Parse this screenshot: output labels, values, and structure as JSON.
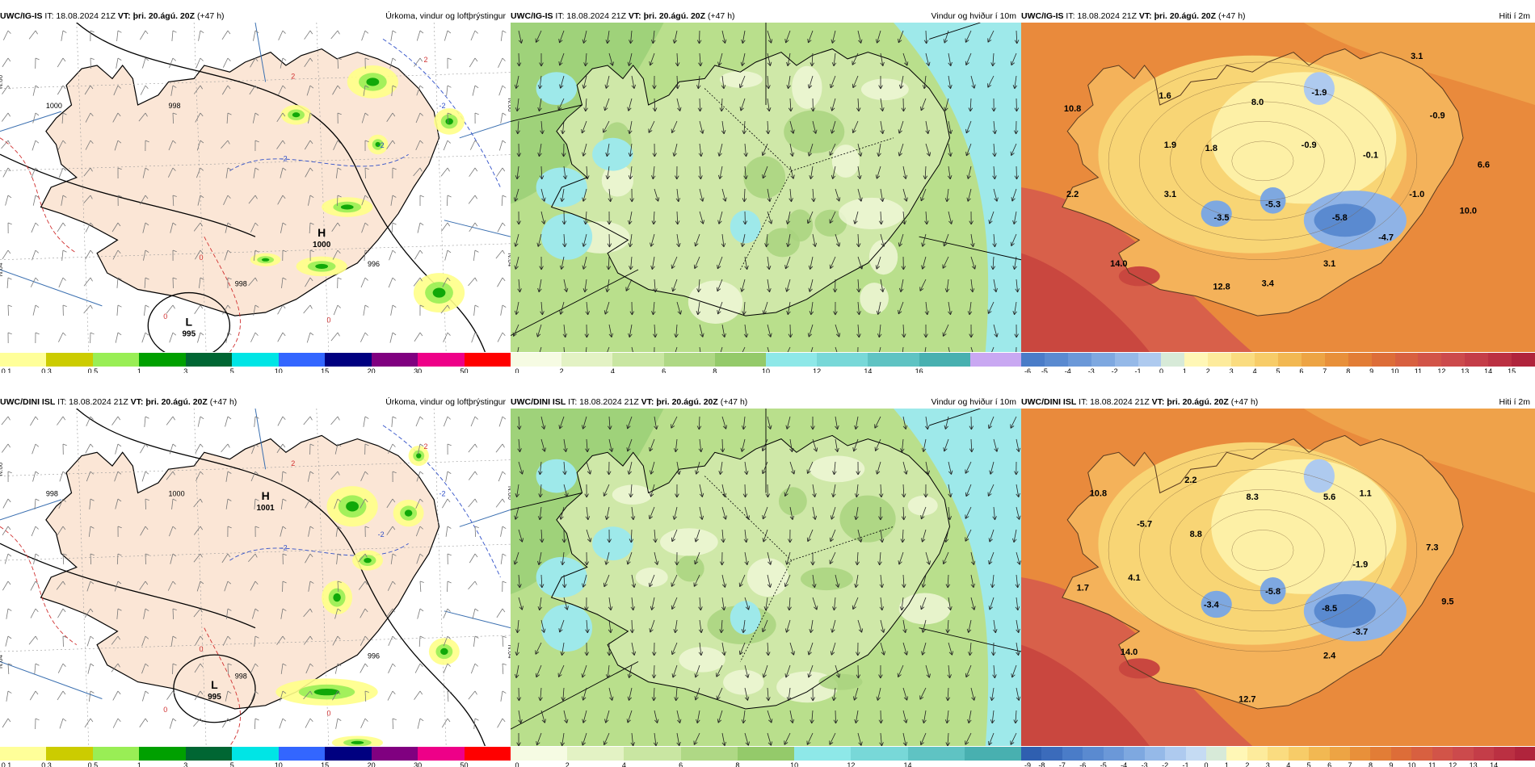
{
  "rows": [
    {
      "model": "UWC/IG-IS",
      "panels": [
        {
          "kind": "precip",
          "it_text": "IT: 18.08.2024 21Z",
          "vt_label": "VT:",
          "vt_value": "þri. 20.ágú. 20Z",
          "lead": "(+47 h)",
          "title": "Úrkoma, vindur og loftþrýstingur",
          "pressure_centers": [
            {
              "type": "H",
              "value": "1000"
            },
            {
              "type": "L",
              "value": "995"
            }
          ],
          "isobar_labels": [
            "998",
            "1000",
            "996",
            "998"
          ],
          "temp_labels": [
            "-2",
            "-2",
            "-2",
            "0",
            "0",
            "0",
            "2",
            "2"
          ],
          "edge_labels": [
            "N.66",
            "N.64",
            "N.66",
            "N.64"
          ],
          "colorbar": {
            "ticks": [
              "0.1",
              "0.3",
              "0.5",
              "1",
              "3",
              "5",
              "10",
              "15",
              "20",
              "30",
              "50"
            ],
            "colors": [
              "#ffff99",
              "#cccc00",
              "#99ee55",
              "#00a000",
              "#006633",
              "#00e5e5",
              "#3366ff",
              "#000080",
              "#800080",
              "#ee0088",
              "#ff0000"
            ]
          }
        },
        {
          "kind": "wind",
          "it_text": "IT: 18.08.2024 21Z",
          "vt_label": "VT:",
          "vt_value": "þri. 20.ágú. 20Z",
          "lead": "(+47 h)",
          "title": "Vindur og hviður í 10m",
          "colorbar": {
            "ticks": [
              "0",
              "2",
              "4",
              "6",
              "8",
              "10",
              "12",
              "14",
              "16"
            ],
            "colors": [
              "#f6fbe3",
              "#e3f2c4",
              "#c9e6a2",
              "#afd885",
              "#94ca6a",
              "#8ee8e8",
              "#78d8d8",
              "#5fc3c3",
              "#48b0b0",
              "#c9a8f2"
            ]
          }
        },
        {
          "kind": "temp",
          "it_text": "IT: 18.08.2024 21Z",
          "vt_label": "VT:",
          "vt_value": "þri. 20.ágú. 20Z",
          "lead": "(+47 h)",
          "title": "Hiti í 2m",
          "labels": [
            "10.8",
            "1.6",
            "8.0",
            "-1.9",
            "3.1",
            "-0.9",
            "1.9",
            "1.8",
            "-0.9",
            "-0.1",
            "6.6",
            "2.2",
            "3.1",
            "-5.3",
            "-3.5",
            "-5.8",
            "-1.0",
            "10.0",
            "-4.7",
            "14.0",
            "3.1",
            "12.8",
            "3.4"
          ],
          "colorbar": {
            "ticks": [
              "-6",
              "-5",
              "-4",
              "-3",
              "-2",
              "-1",
              "0",
              "1",
              "2",
              "3",
              "4",
              "5",
              "6",
              "7",
              "8",
              "9",
              "10",
              "11",
              "12",
              "13",
              "14",
              "15"
            ],
            "colors": [
              "#4a7cc8",
              "#5a8ad0",
              "#6b98d8",
              "#7ea8e0",
              "#95b9e8",
              "#aecaef",
              "#d7ead8",
              "#fff7b6",
              "#fdeb9c",
              "#fadc80",
              "#f7cc68",
              "#f2b852",
              "#eda444",
              "#e8903a",
              "#e27d36",
              "#dd6d38",
              "#d86040",
              "#d25448",
              "#cc4a4c",
              "#c43d48",
              "#bb3042",
              "#b0243c"
            ]
          }
        }
      ]
    },
    {
      "model": "UWC/DINI ISL",
      "panels": [
        {
          "kind": "precip",
          "it_text": "IT: 18.08.2024 21Z",
          "vt_label": "VT:",
          "vt_value": "þri. 20.ágú. 20Z",
          "lead": "(+47 h)",
          "title": "Úrkoma, vindur og loftþrýstingur",
          "pressure_centers": [
            {
              "type": "H",
              "value": "1001"
            },
            {
              "type": "L",
              "value": "995"
            }
          ],
          "isobar_labels": [
            "1000",
            "998",
            "996",
            "998"
          ],
          "temp_labels": [
            "-2",
            "-2",
            "-2",
            "0",
            "0",
            "0",
            "2",
            "2"
          ],
          "edge_labels": [
            "N.66",
            "N.64",
            "N.66",
            "N.64"
          ],
          "colorbar": {
            "ticks": [
              "0.1",
              "0.3",
              "0.5",
              "1",
              "3",
              "5",
              "10",
              "15",
              "20",
              "30",
              "50"
            ],
            "colors": [
              "#ffff99",
              "#cccc00",
              "#99ee55",
              "#00a000",
              "#006633",
              "#00e5e5",
              "#3366ff",
              "#000080",
              "#800080",
              "#ee0088",
              "#ff0000"
            ]
          }
        },
        {
          "kind": "wind",
          "it_text": "IT: 18.08.2024 21Z",
          "vt_label": "VT:",
          "vt_value": "þri. 20.ágú. 20Z",
          "lead": "(+47 h)",
          "title": "Vindur og hviður í 10m",
          "colorbar": {
            "ticks": [
              "0",
              "2",
              "4",
              "6",
              "8",
              "10",
              "12",
              "14"
            ],
            "colors": [
              "#f6fbe3",
              "#e3f2c4",
              "#c9e6a2",
              "#afd885",
              "#94ca6a",
              "#8ee8e8",
              "#78d8d8",
              "#5fc3c3",
              "#48b0b0"
            ]
          }
        },
        {
          "kind": "temp",
          "it_text": "IT: 18.08.2024 21Z",
          "vt_label": "VT:",
          "vt_value": "þri. 20.ágú. 20Z",
          "lead": "(+47 h)",
          "title": "Hiti í 2m",
          "labels": [
            "10.8",
            "2.2",
            "8.3",
            "5.6",
            "1.1",
            "-5.7",
            "8.8",
            "7.3",
            "-1.9",
            "1.7",
            "4.1",
            "-3.4",
            "-5.8",
            "-8.5",
            "-3.7",
            "9.5",
            "2.4",
            "14.0",
            "12.7"
          ],
          "colorbar": {
            "ticks": [
              "-9",
              "-8",
              "-7",
              "-6",
              "-5",
              "-4",
              "-3",
              "-2",
              "-1",
              "0",
              "1",
              "2",
              "3",
              "4",
              "5",
              "6",
              "7",
              "8",
              "9",
              "10",
              "11",
              "12",
              "13",
              "14"
            ],
            "colors": [
              "#2f5fb0",
              "#3b6bbb",
              "#4a7cc8",
              "#5a8ad0",
              "#6b98d8",
              "#7ea8e0",
              "#95b9e8",
              "#aecaef",
              "#c5dbf3",
              "#d7ead8",
              "#fff7b6",
              "#fdeb9c",
              "#fadc80",
              "#f7cc68",
              "#f2b852",
              "#eda444",
              "#e8903a",
              "#e27d36",
              "#dd6d38",
              "#d86040",
              "#d25448",
              "#cc4a4c",
              "#c43d48",
              "#bb3042",
              "#b0243c"
            ]
          }
        }
      ]
    }
  ]
}
